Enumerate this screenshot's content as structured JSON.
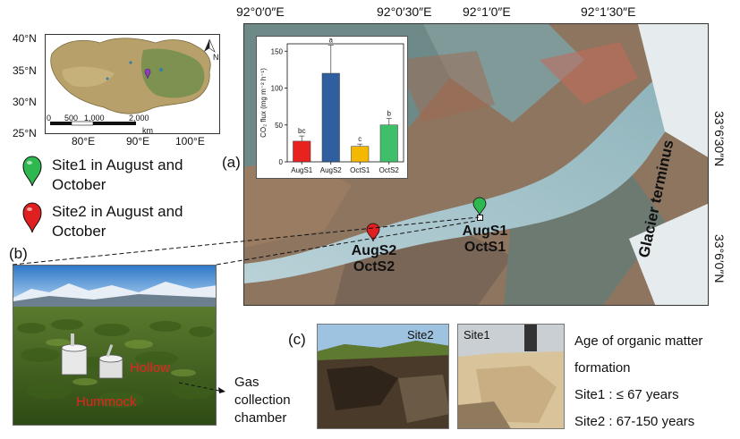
{
  "tibet_map": {
    "lat_labels": [
      "40°N",
      "35°N",
      "30°N",
      "25°N"
    ],
    "lon_labels": [
      "80°E",
      "90°E",
      "100°E"
    ],
    "scale_labels": [
      "0",
      "500",
      "1,000",
      "2,000"
    ],
    "scale_unit": "km",
    "north_label": "N"
  },
  "legend": {
    "site1_text": "Site1 in August and October",
    "site1_color": "#2fb84f",
    "site2_text": "Site2 in August and October",
    "site2_color": "#e02020"
  },
  "panel_a": {
    "letter": "(a)",
    "lon_labels": [
      "92°0′0″E",
      "92°0′30″E",
      "92°1′0″E",
      "92°1′30″E"
    ],
    "lat_labels": [
      "33°6′30″N",
      "33°6′0″N"
    ],
    "glacier_label": "Glacier terminus",
    "site_labels": {
      "site2_line1": "AugS2",
      "site2_line2": "OctS2",
      "site1_line1": "AugS1",
      "site1_line2": "OctS1"
    }
  },
  "panel_b": {
    "letter": "(b)",
    "hollow_label": "Hollow",
    "hummock_label": "Hummock",
    "chamber_label": "Gas collection chamber",
    "label_color": "#e8231f"
  },
  "panel_c": {
    "letter": "(c)",
    "photo1_label": "Site2",
    "photo2_label": "Site1",
    "age_title": "Age of organic matter formation",
    "age_site1": "Site1 : ≤ 67 years",
    "age_site2": "Site2 : 67-150 years"
  },
  "chart_data": {
    "type": "bar",
    "categories": [
      "AugS1",
      "AugS2",
      "OctS1",
      "OctS2"
    ],
    "values": [
      28,
      120,
      21,
      50
    ],
    "errors": [
      7,
      38,
      3,
      9
    ],
    "letters": [
      "bc",
      "a",
      "c",
      "b"
    ],
    "colors": [
      "#e8231f",
      "#2f5f9e",
      "#f5b800",
      "#3fbf6a"
    ],
    "ylabel": "CO₂ flux (mg m⁻² h⁻¹)",
    "ylim": [
      0,
      160
    ],
    "yticks": [
      0,
      50,
      100,
      150
    ]
  }
}
